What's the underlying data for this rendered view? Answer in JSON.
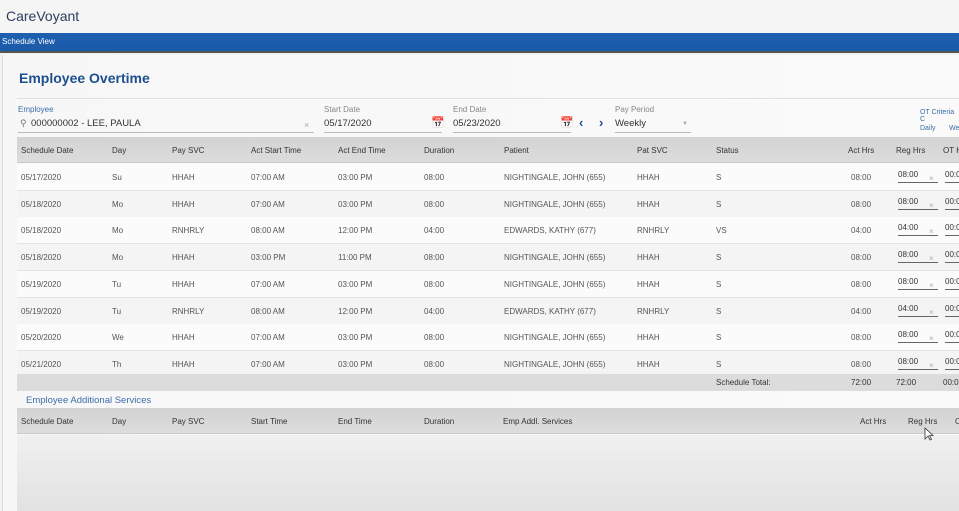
{
  "app": {
    "title": "CareVoyant"
  },
  "nav": {
    "items": [
      {
        "label": "Schedule View"
      }
    ]
  },
  "page": {
    "title": "Employee Overtime"
  },
  "filters": {
    "employee": {
      "label": "Employee",
      "value": "000000002 - LEE, PAULA",
      "icon": "search-icon",
      "clear_icon": "close-icon"
    },
    "start_date": {
      "label": "Start Date",
      "value": "05/17/2020",
      "icon": "calendar-icon"
    },
    "end_date": {
      "label": "End Date",
      "value": "05/23/2020",
      "icon": "calendar-icon"
    },
    "prev_icon": "chevron-left-icon",
    "next_icon": "chevron-right-icon",
    "pay_period": {
      "label": "Pay Period",
      "value": "Weekly",
      "icon": "dropdown-arrow-icon"
    },
    "ot_criteria": {
      "label": "OT Criteria C",
      "options": [
        "Daily",
        "We"
      ]
    }
  },
  "schedule_table": {
    "columns": [
      "Schedule Date",
      "Day",
      "Pay SVC",
      "Act Start Time",
      "Act End Time",
      "Duration",
      "Patient",
      "Pat SVC",
      "Status",
      "Act Hrs",
      "Reg Hrs",
      "OT H"
    ],
    "rows": [
      {
        "date": "05/17/2020",
        "day": "Su",
        "pay_svc": "HHAH",
        "start": "07:00 AM",
        "end": "03:00 PM",
        "duration": "08:00",
        "patient": "NIGHTINGALE, JOHN (655)",
        "pat_svc": "HHAH",
        "status": "S",
        "act_hrs": "08:00",
        "reg_hrs": "08:00",
        "ot_hrs": "00:0"
      },
      {
        "date": "05/18/2020",
        "day": "Mo",
        "pay_svc": "HHAH",
        "start": "07:00 AM",
        "end": "03:00 PM",
        "duration": "08:00",
        "patient": "NIGHTINGALE, JOHN (655)",
        "pat_svc": "HHAH",
        "status": "S",
        "act_hrs": "08:00",
        "reg_hrs": "08:00",
        "ot_hrs": "00:0"
      },
      {
        "date": "05/18/2020",
        "day": "Mo",
        "pay_svc": "RNHRLY",
        "start": "08:00 AM",
        "end": "12:00 PM",
        "duration": "04:00",
        "patient": "EDWARDS, KATHY (677)",
        "pat_svc": "RNHRLY",
        "status": "VS",
        "act_hrs": "04:00",
        "reg_hrs": "04:00",
        "ot_hrs": "00:0"
      },
      {
        "date": "05/18/2020",
        "day": "Mo",
        "pay_svc": "HHAH",
        "start": "03:00 PM",
        "end": "11:00 PM",
        "duration": "08:00",
        "patient": "NIGHTINGALE, JOHN (655)",
        "pat_svc": "HHAH",
        "status": "S",
        "act_hrs": "08:00",
        "reg_hrs": "08:00",
        "ot_hrs": "00:0"
      },
      {
        "date": "05/19/2020",
        "day": "Tu",
        "pay_svc": "HHAH",
        "start": "07:00 AM",
        "end": "03:00 PM",
        "duration": "08:00",
        "patient": "NIGHTINGALE, JOHN (655)",
        "pat_svc": "HHAH",
        "status": "S",
        "act_hrs": "08:00",
        "reg_hrs": "08:00",
        "ot_hrs": "00:0"
      },
      {
        "date": "05/19/2020",
        "day": "Tu",
        "pay_svc": "RNHRLY",
        "start": "08:00 AM",
        "end": "12:00 PM",
        "duration": "04:00",
        "patient": "EDWARDS, KATHY (677)",
        "pat_svc": "RNHRLY",
        "status": "S",
        "act_hrs": "04:00",
        "reg_hrs": "04:00",
        "ot_hrs": "00:0"
      },
      {
        "date": "05/20/2020",
        "day": "We",
        "pay_svc": "HHAH",
        "start": "07:00 AM",
        "end": "03:00 PM",
        "duration": "08:00",
        "patient": "NIGHTINGALE, JOHN (655)",
        "pat_svc": "HHAH",
        "status": "S",
        "act_hrs": "08:00",
        "reg_hrs": "08:00",
        "ot_hrs": "00:0"
      },
      {
        "date": "05/21/2020",
        "day": "Th",
        "pay_svc": "HHAH",
        "start": "07:00 AM",
        "end": "03:00 PM",
        "duration": "08:00",
        "patient": "NIGHTINGALE, JOHN (655)",
        "pat_svc": "HHAH",
        "status": "S",
        "act_hrs": "08:00",
        "reg_hrs": "08:00",
        "ot_hrs": "00:0"
      }
    ],
    "totals": {
      "label": "Schedule Total:",
      "act_hrs": "72:00",
      "reg_hrs": "72:00",
      "ot_hrs": "00:0"
    }
  },
  "additional_services": {
    "title": "Employee Additional Services",
    "columns": [
      "Schedule Date",
      "Day",
      "Pay SVC",
      "Start Time",
      "End Time",
      "Duration",
      "Emp Addl. Services",
      "Act Hrs",
      "Reg Hrs",
      "O"
    ]
  }
}
